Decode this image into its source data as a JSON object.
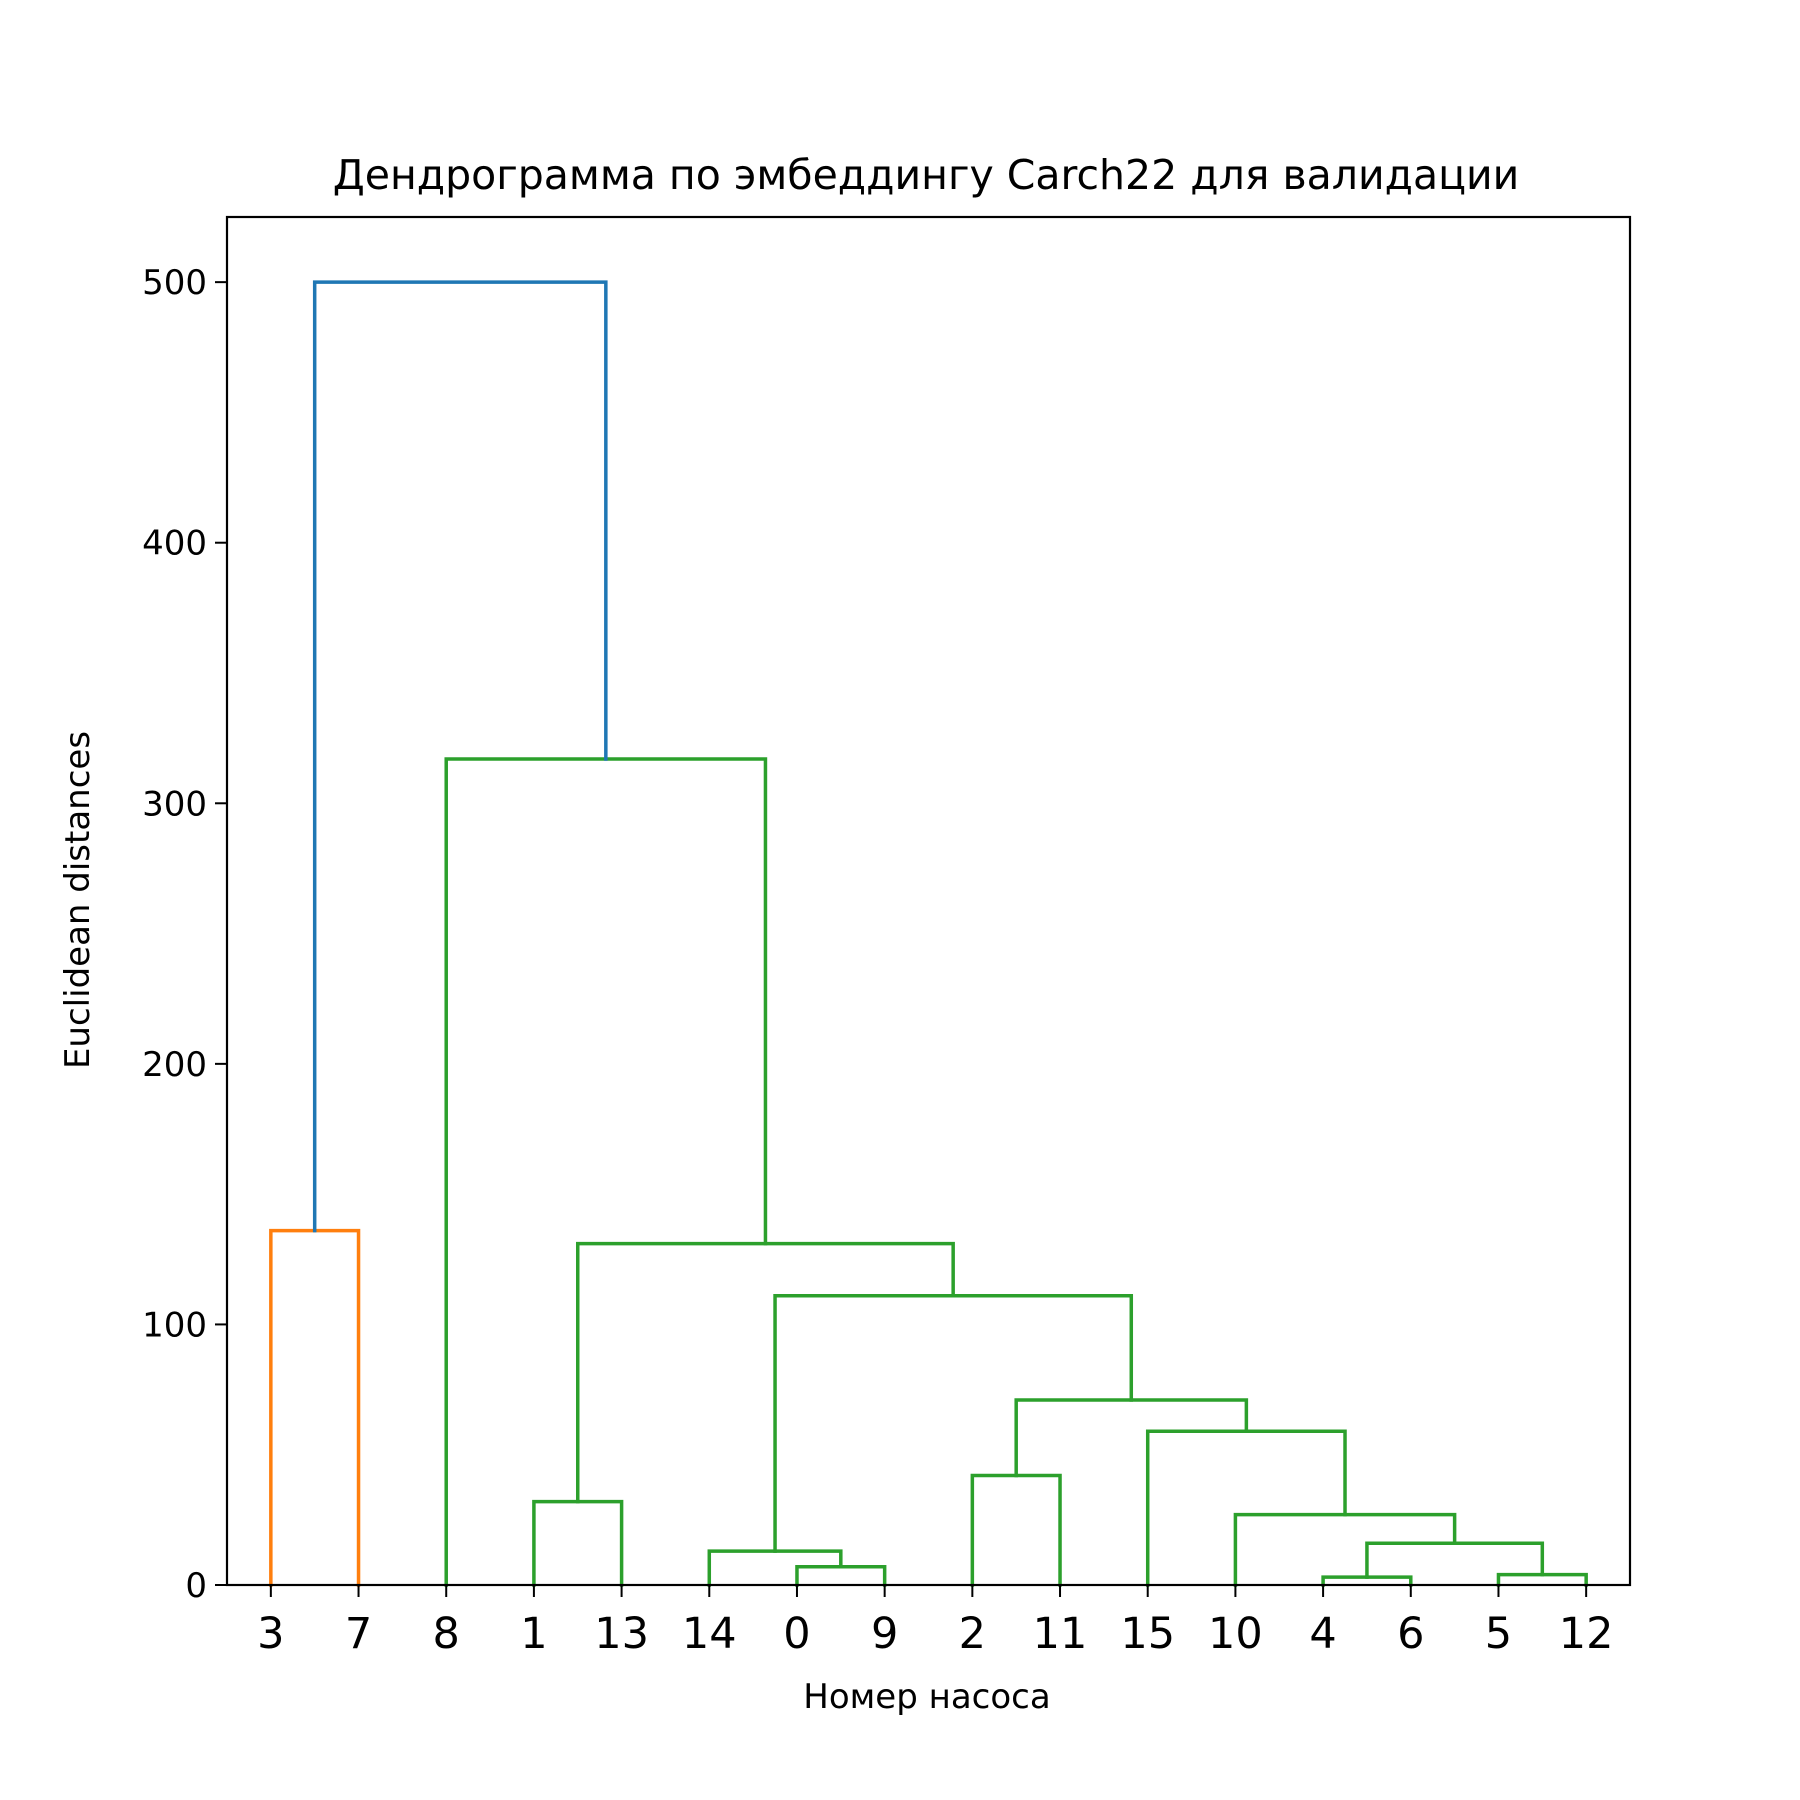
{
  "chart_data": {
    "type": "dendrogram",
    "title": "Дендрограмма по эмбеддингу Carch22 для валидации",
    "xlabel": "Номер насоса",
    "ylabel": "Euclidean distances",
    "ylim": [
      0,
      525
    ],
    "yticks": [
      "0",
      "100",
      "200",
      "300",
      "400",
      "500"
    ],
    "leaves": [
      "3",
      "7",
      "8",
      "1",
      "13",
      "14",
      "0",
      "9",
      "2",
      "11",
      "15",
      "10",
      "4",
      "6",
      "5",
      "12"
    ],
    "colors": {
      "orange": "#ff7f0e",
      "green": "#2ca02c",
      "blue": "#1f77b4"
    },
    "merges": [
      {
        "left": "3",
        "right": "7",
        "height": 136,
        "color": "orange"
      },
      {
        "left": "1",
        "right": "13",
        "height": 32,
        "color": "green"
      },
      {
        "left": "0",
        "right": "9",
        "height": 7,
        "color": "green"
      },
      {
        "left": "14",
        "right": "0+9",
        "height": 13,
        "color": "green"
      },
      {
        "left": "2",
        "right": "11",
        "height": 42,
        "color": "green"
      },
      {
        "left": "4",
        "right": "6",
        "height": 3,
        "color": "green"
      },
      {
        "left": "5",
        "right": "12",
        "height": 4,
        "color": "green"
      },
      {
        "left": "4+6",
        "right": "5+12",
        "height": 16,
        "color": "green"
      },
      {
        "left": "10",
        "right": "4+6+5+12",
        "height": 27,
        "color": "green"
      },
      {
        "left": "15",
        "right": "10+4+6+5+12",
        "height": 59,
        "color": "green"
      },
      {
        "left": "2+11",
        "right": "15+10+4+6+5+12",
        "height": 71,
        "color": "green"
      },
      {
        "left": "14+0+9",
        "right": "2+11+15+10+4+6+5+12",
        "height": 111,
        "color": "green"
      },
      {
        "left": "1+13",
        "right": "14+0+9+2+11+15+10+4+6+5+12",
        "height": 131,
        "color": "green"
      },
      {
        "left": "8",
        "right": "1+13+14+0+9+2+11+15+10+4+6+5+12",
        "height": 317,
        "color": "green"
      },
      {
        "left": "3+7",
        "right": "8+1+13+14+0+9+2+11+15+10+4+6+5+12",
        "height": 500,
        "color": "blue"
      }
    ]
  }
}
